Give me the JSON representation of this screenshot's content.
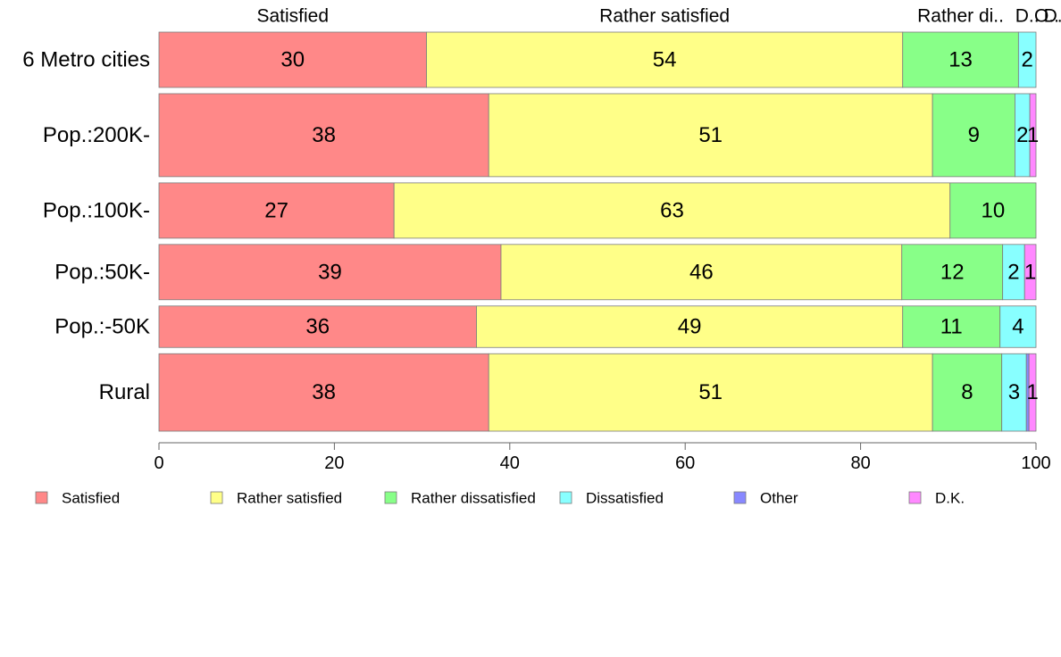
{
  "chart_data": {
    "type": "bar",
    "orientation": "horizontal",
    "stacked": true,
    "categories": [
      "6 Metro cities",
      "Pop.:200K-",
      "Pop.:100K-",
      "Pop.:50K-",
      "Pop.:-50K",
      "Rural"
    ],
    "series": [
      {
        "name": "Satisfied",
        "color": "#ff8888",
        "values": [
          30.5,
          37.6,
          26.8,
          39.0,
          36.2,
          37.6
        ]
      },
      {
        "name": "Rather satisfied",
        "color": "#ffff88",
        "values": [
          54.3,
          50.6,
          63.4,
          45.7,
          48.6,
          50.6
        ]
      },
      {
        "name": "Rather dissatisfied",
        "color": "#88ff88",
        "values": [
          13.2,
          9.4,
          9.8,
          11.5,
          11.1,
          7.9
        ]
      },
      {
        "name": "Dissatisfied",
        "color": "#88ffff",
        "values": [
          2.0,
          1.7,
          0.0,
          2.5,
          4.1,
          2.8
        ]
      },
      {
        "name": "Other",
        "color": "#8888ff",
        "values": [
          0.0,
          0.0,
          0.0,
          0.0,
          0.0,
          0.3
        ]
      },
      {
        "name": "D.K.",
        "color": "#ff88ff",
        "values": [
          0.0,
          0.7,
          0.0,
          1.3,
          0.0,
          0.8
        ]
      }
    ],
    "segment_labels": [
      [
        "30",
        "54",
        "13",
        "2",
        "",
        ""
      ],
      [
        "38",
        "51",
        "9",
        "2",
        "",
        "1"
      ],
      [
        "27",
        "63",
        "10",
        "",
        "",
        ""
      ],
      [
        "39",
        "46",
        "12",
        "2",
        "",
        "1"
      ],
      [
        "36",
        "49",
        "11",
        "4",
        "",
        ""
      ],
      [
        "38",
        "51",
        "8",
        "3",
        "",
        "1"
      ]
    ],
    "bar_weights": [
      1.0,
      1.5,
      1.0,
      1.0,
      0.75,
      1.4
    ],
    "top_labels": [
      "Satisfied",
      "Rather satisfied",
      "Rather di..",
      "D..",
      "O..",
      "D.."
    ],
    "x_ticks": [
      "0",
      "20",
      "40",
      "60",
      "80",
      "100"
    ],
    "xlim": [
      0,
      100
    ],
    "grid": false,
    "legend": {
      "position": "bottom",
      "items": [
        "Satisfied",
        "Rather satisfied",
        "Rather dissatisfied",
        "Dissatisfied",
        "Other",
        "D.K."
      ]
    }
  }
}
